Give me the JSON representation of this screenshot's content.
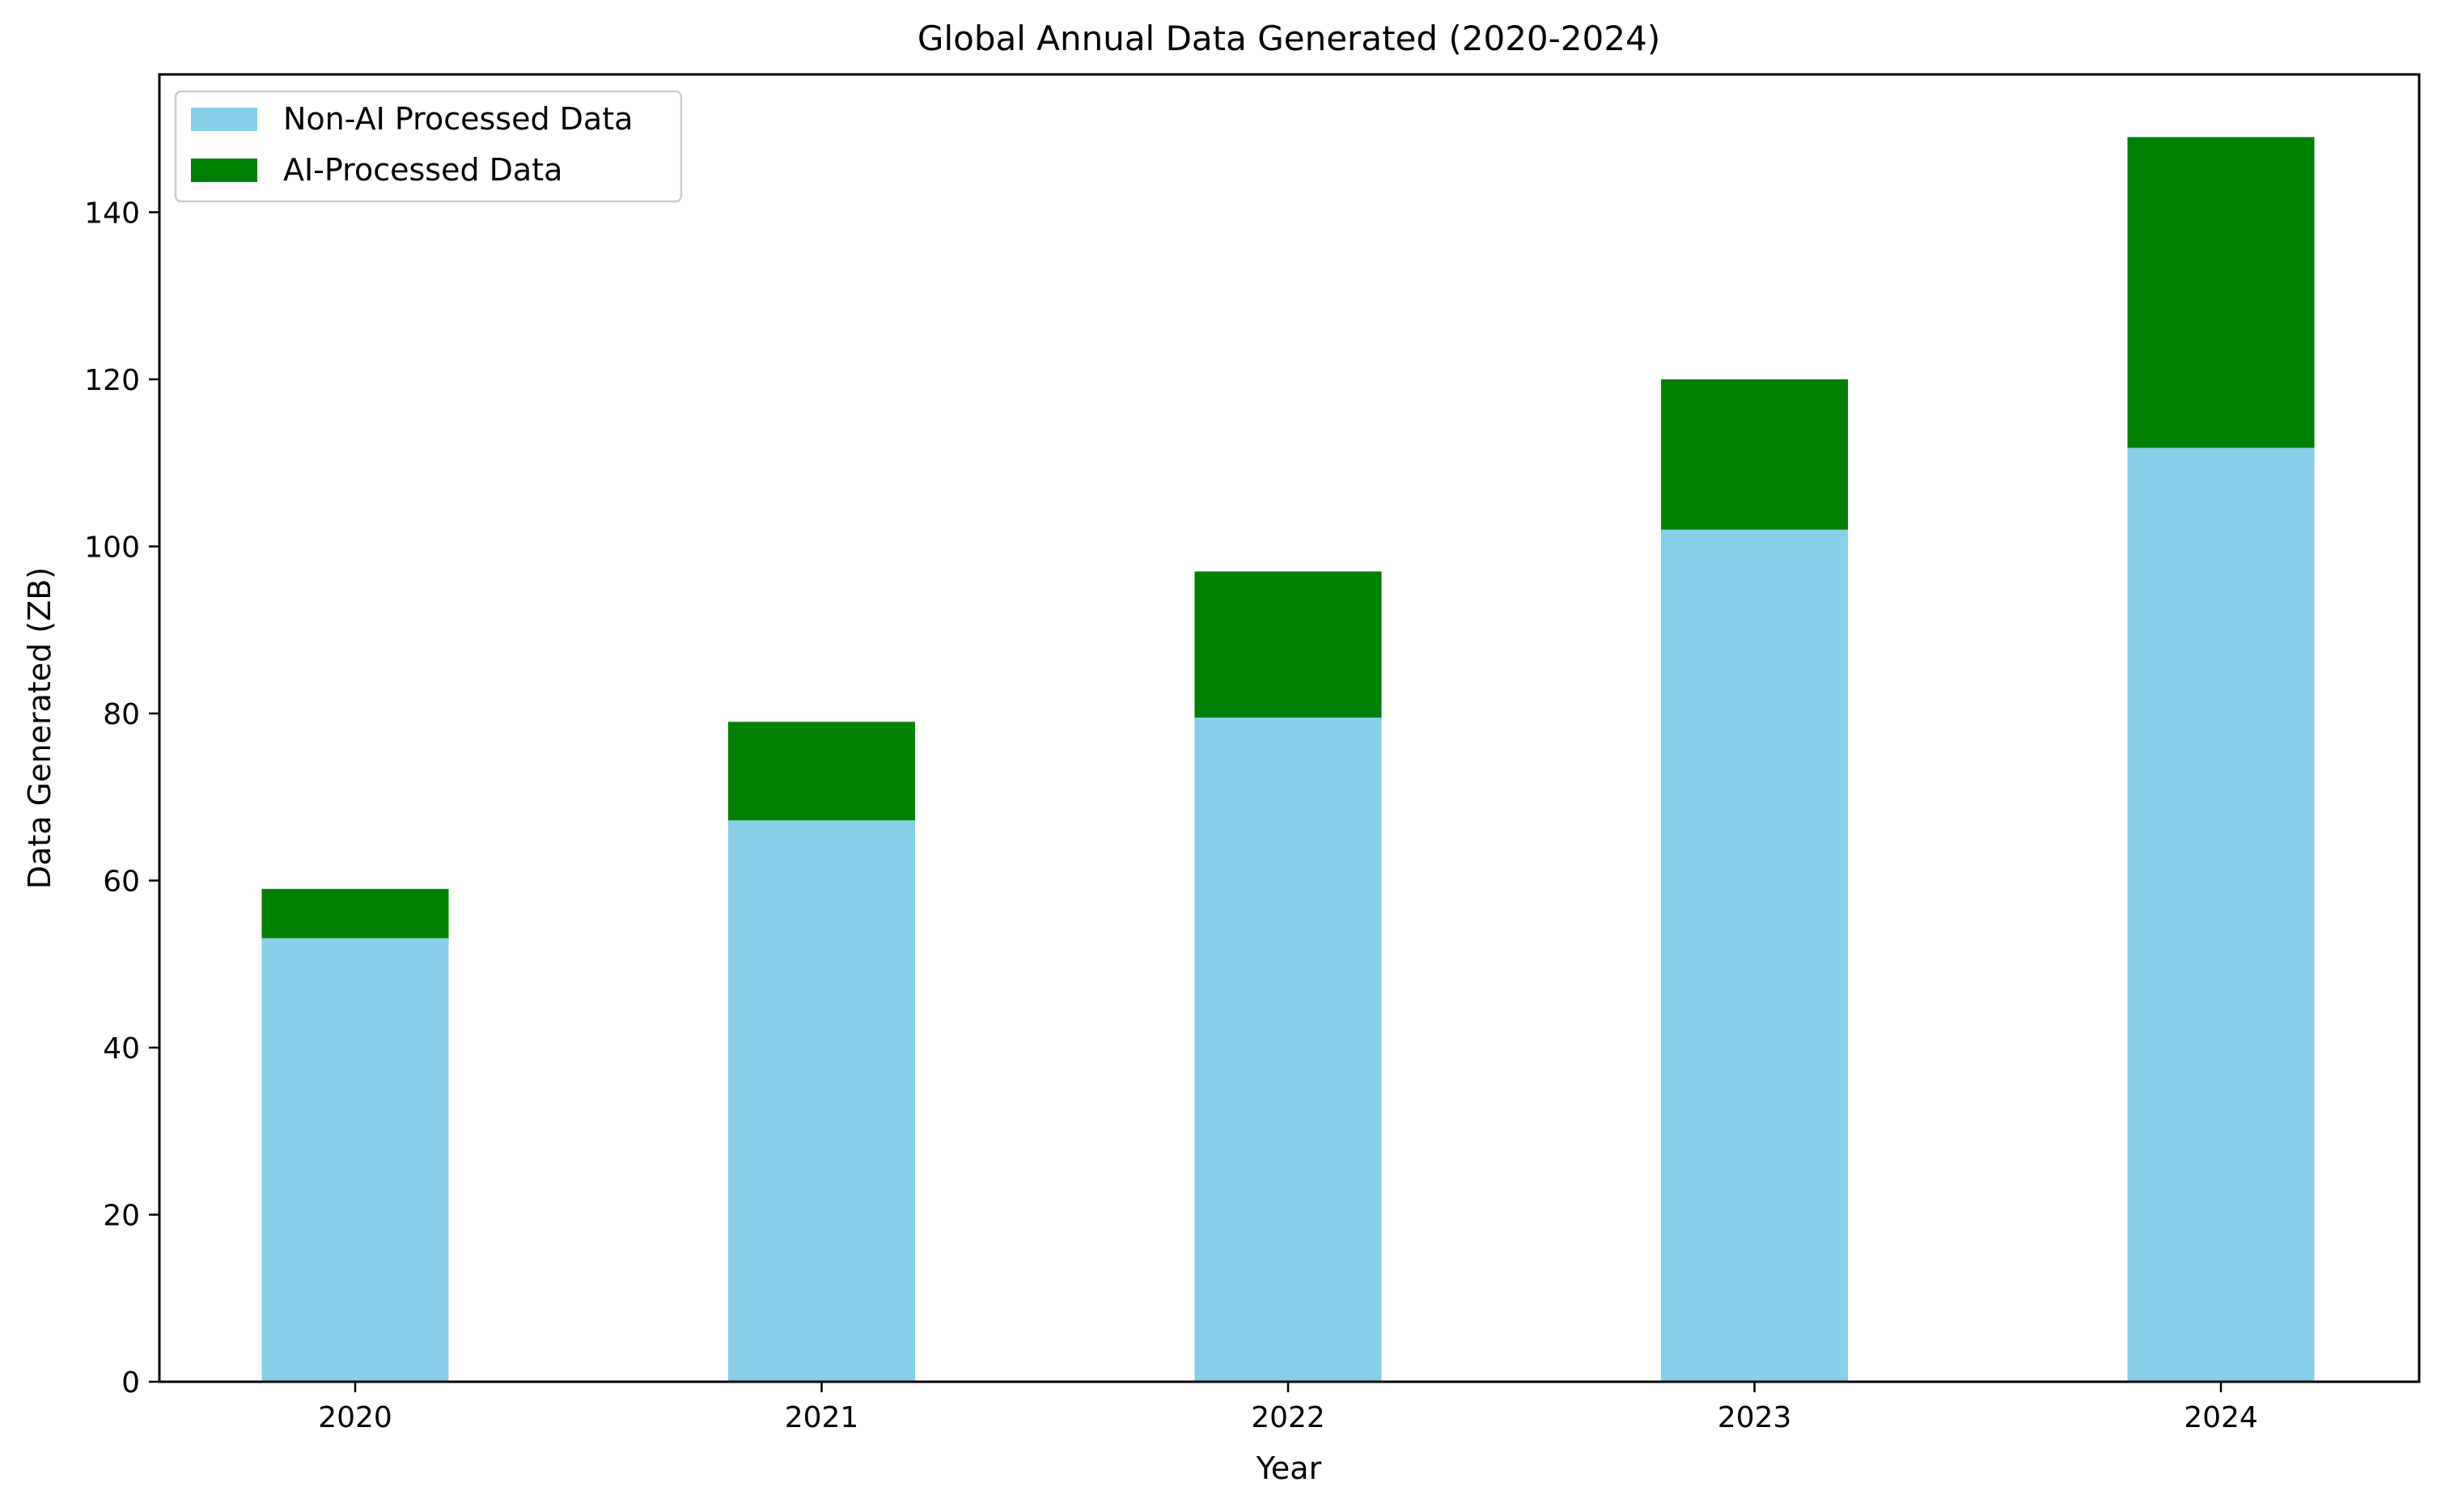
{
  "chart_data": {
    "type": "bar",
    "stacked": true,
    "title": "Global Annual Data Generated (2020-2024)",
    "xlabel": "Year",
    "ylabel": "Data Generated (ZB)",
    "categories": [
      "2020",
      "2021",
      "2022",
      "2023",
      "2024"
    ],
    "series": [
      {
        "name": "Non-AI Processed Data",
        "color": "#87CEEB",
        "values": [
          53.1,
          67.2,
          79.5,
          102.0,
          111.8
        ]
      },
      {
        "name": "AI-Processed Data",
        "color": "#008000",
        "values": [
          5.9,
          11.8,
          17.5,
          18.0,
          37.2
        ]
      }
    ],
    "ylim": [
      0,
      156.5
    ],
    "yticks": [
      0,
      20,
      40,
      60,
      80,
      100,
      120,
      140
    ],
    "grid": false,
    "legend_position": "top-left"
  }
}
